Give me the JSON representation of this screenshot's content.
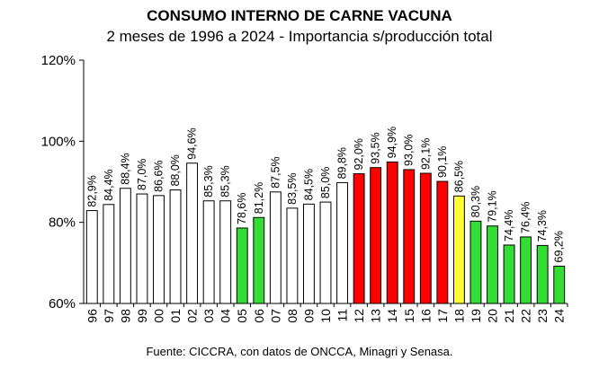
{
  "chart_data": {
    "type": "bar",
    "title": "CONSUMO INTERNO DE CARNE VACUNA",
    "subtitle": "2 meses de 1996 a 2024 - Importancia s/producción total",
    "source": "Fuente: CICCRA, con datos de ONCCA, Minagri y Senasa.",
    "ylim": [
      60,
      120
    ],
    "yticks": [
      60,
      80,
      100,
      120
    ],
    "ytick_labels": [
      "60%",
      "80%",
      "100%",
      "120%"
    ],
    "grid": false,
    "categories": [
      "96",
      "97",
      "98",
      "99",
      "00",
      "01",
      "02",
      "03",
      "04",
      "05",
      "06",
      "07",
      "08",
      "09",
      "10",
      "11",
      "12",
      "13",
      "14",
      "15",
      "16",
      "17",
      "18",
      "19",
      "20",
      "21",
      "22",
      "23",
      "24"
    ],
    "values": [
      82.9,
      84.4,
      88.4,
      87.0,
      86.6,
      88.0,
      94.6,
      85.3,
      85.3,
      78.6,
      81.2,
      87.5,
      83.5,
      84.5,
      85.0,
      89.8,
      92.0,
      93.5,
      94.9,
      93.0,
      92.1,
      90.1,
      86.5,
      80.3,
      79.1,
      74.4,
      76.4,
      74.3,
      69.2
    ],
    "data_labels": [
      "82,9%",
      "84,4%",
      "88,4%",
      "87,0%",
      "86,6%",
      "88,0%",
      "94,6%",
      "85,3%",
      "85,3%",
      "78,6%",
      "81,2%",
      "87,5%",
      "83,5%",
      "84,5%",
      "85,0%",
      "89,8%",
      "92,0%",
      "93,5%",
      "94,9%",
      "93,0%",
      "92,1%",
      "90,1%",
      "86,5%",
      "80,3%",
      "79,1%",
      "74,4%",
      "76,4%",
      "74,3%",
      "69,2%"
    ],
    "bar_colors": [
      "#ffffff",
      "#ffffff",
      "#ffffff",
      "#ffffff",
      "#ffffff",
      "#ffffff",
      "#ffffff",
      "#ffffff",
      "#ffffff",
      "#33dd33",
      "#33dd33",
      "#ffffff",
      "#ffffff",
      "#ffffff",
      "#ffffff",
      "#ffffff",
      "#ff0000",
      "#ff0000",
      "#ff0000",
      "#ff0000",
      "#ff0000",
      "#ff0000",
      "#ffff33",
      "#33dd33",
      "#33dd33",
      "#33dd33",
      "#33dd33",
      "#33dd33",
      "#33dd33"
    ]
  }
}
